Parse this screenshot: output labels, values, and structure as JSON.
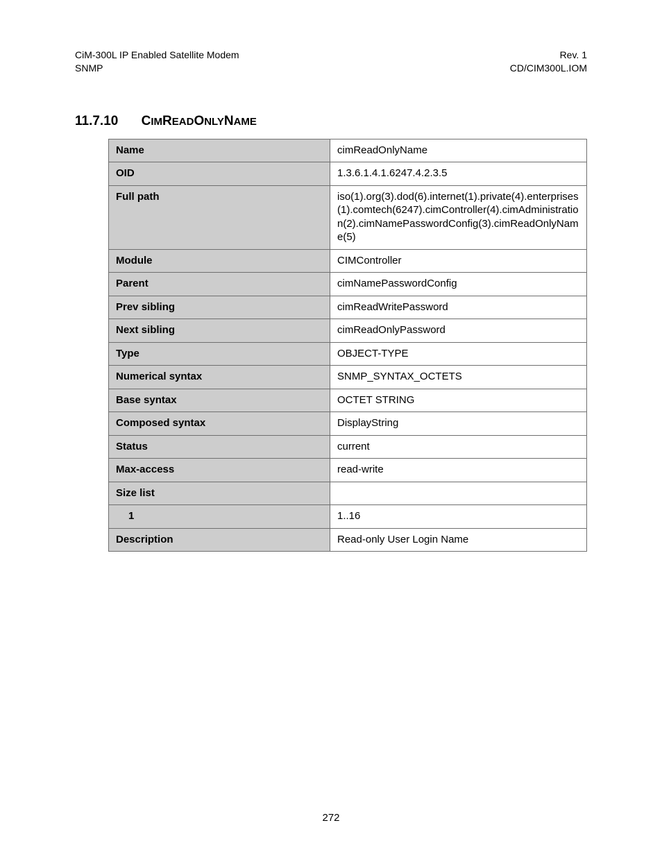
{
  "header": {
    "left_line1": "CiM-300L IP Enabled Satellite Modem",
    "left_line2": "SNMP",
    "right_line1": "Rev. 1",
    "right_line2": "CD/CIM300L.IOM"
  },
  "section": {
    "number": "11.7.10",
    "title_parts": [
      {
        "t": "C",
        "c": "maj"
      },
      {
        "t": "IM",
        "c": "minr"
      },
      {
        "t": "R",
        "c": "maj"
      },
      {
        "t": "EAD",
        "c": "minr"
      },
      {
        "t": "O",
        "c": "maj"
      },
      {
        "t": "NLY",
        "c": "minr"
      },
      {
        "t": "N",
        "c": "maj"
      },
      {
        "t": "AME",
        "c": "minr"
      }
    ]
  },
  "table": {
    "rows": [
      {
        "label": "Name",
        "value": "cimReadOnlyName"
      },
      {
        "label": "OID",
        "value": "1.3.6.1.4.1.6247.4.2.3.5"
      },
      {
        "label": "Full path",
        "value": "iso(1).org(3).dod(6).internet(1).private(4).enterprises(1).comtech(6247).cimController(4).cimAdministration(2).cimNamePasswordConfig(3).cimReadOnlyName(5)"
      },
      {
        "label": "Module",
        "value": "CIMController"
      },
      {
        "label": "Parent",
        "value": "cimNamePasswordConfig"
      },
      {
        "label": "Prev sibling",
        "value": "cimReadWritePassword"
      },
      {
        "label": "Next sibling",
        "value": "cimReadOnlyPassword"
      },
      {
        "label": "Type",
        "value": "OBJECT-TYPE"
      },
      {
        "label": "Numerical syntax",
        "value": "SNMP_SYNTAX_OCTETS"
      },
      {
        "label": "Base syntax",
        "value": "OCTET STRING"
      },
      {
        "label": "Composed syntax",
        "value": "DisplayString"
      },
      {
        "label": "Status",
        "value": "current"
      },
      {
        "label": "Max-access",
        "value": "read-write"
      },
      {
        "label": "Size list",
        "value": ""
      },
      {
        "label": "1",
        "value": "1..16",
        "indent": true
      },
      {
        "label": "Description",
        "value": "Read-only User Login Name"
      }
    ]
  },
  "page_number": "272",
  "colors": {
    "label_bg": "#cdcdcd",
    "border": "#6f6f6f",
    "text": "#000000",
    "page_bg": "#ffffff"
  }
}
